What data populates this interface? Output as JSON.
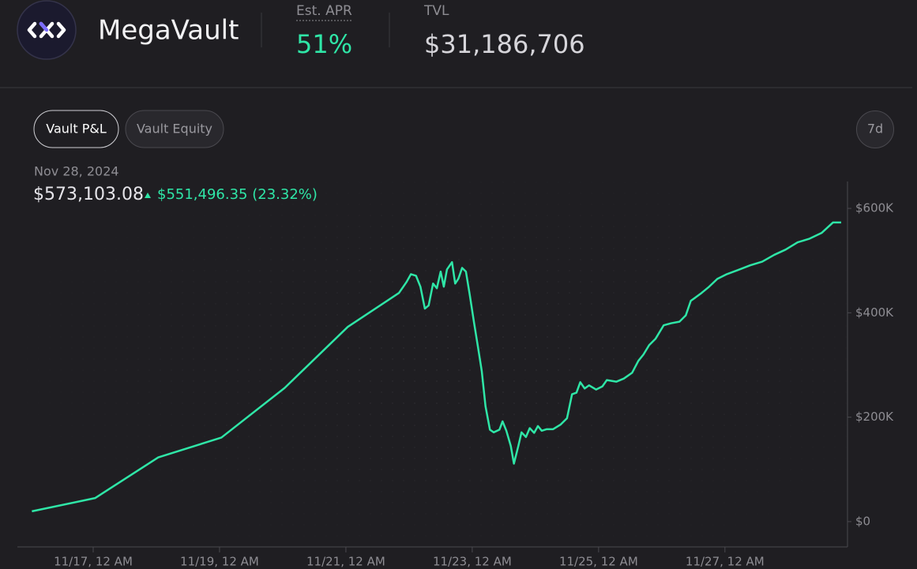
{
  "header": {
    "name": "MegaVault",
    "apr_label": "Est. APR",
    "apr_value": "51%",
    "tvl_label": "TVL",
    "tvl_value": "$31,186,706"
  },
  "tabs": [
    "Vault P&L",
    "Vault Equity"
  ],
  "range": "7d",
  "summary": {
    "date": "Nov 28, 2024",
    "value": "$573,103.08",
    "change": "$551,496.35 (23.32%)"
  },
  "chart_data": {
    "type": "line",
    "color": "#2fe6a7",
    "x": [
      16.03,
      17.03,
      18.03,
      19.03,
      20.03,
      21.03,
      21.84,
      21.96,
      22.03,
      22.11,
      22.18,
      22.25,
      22.31,
      22.38,
      22.44,
      22.5,
      22.55,
      22.6,
      22.68,
      22.73,
      22.78,
      22.84,
      22.9,
      22.96,
      23.03,
      23.09,
      23.15,
      23.21,
      23.28,
      23.34,
      23.43,
      23.48,
      23.54,
      23.61,
      23.66,
      23.73,
      23.78,
      23.85,
      23.91,
      23.98,
      24.04,
      24.1,
      24.18,
      24.28,
      24.4,
      24.5,
      24.58,
      24.65,
      24.71,
      24.78,
      24.85,
      24.96,
      25.06,
      25.13,
      25.28,
      25.4,
      25.53,
      25.63,
      25.71,
      25.8,
      25.9,
      26.03,
      26.15,
      26.28,
      26.38,
      26.46,
      26.53,
      26.63,
      26.75,
      26.88,
      27.03,
      27.21,
      27.4,
      27.59,
      27.78,
      27.96,
      28.15,
      28.34,
      28.53,
      28.71,
      28.84
    ],
    "values": [
      19700,
      45000,
      123000,
      161000,
      256000,
      373000,
      438000,
      459000,
      474000,
      471000,
      450000,
      408000,
      414000,
      456000,
      447000,
      479000,
      450000,
      483000,
      497000,
      456000,
      465000,
      486000,
      479000,
      435000,
      380000,
      335000,
      289000,
      221000,
      176000,
      171000,
      176000,
      192000,
      174000,
      145000,
      111000,
      145000,
      171000,
      162000,
      179000,
      170000,
      183000,
      174000,
      177000,
      177000,
      186000,
      198000,
      244000,
      247000,
      267000,
      255000,
      261000,
      253000,
      259000,
      271000,
      268000,
      274000,
      285000,
      308000,
      320000,
      338000,
      350000,
      376000,
      380000,
      383000,
      395000,
      423000,
      429000,
      438000,
      450000,
      465000,
      474000,
      482000,
      491000,
      498000,
      511000,
      521000,
      535000,
      542000,
      553000,
      573000,
      573000
    ],
    "xlim": [
      15.8,
      28.94
    ],
    "xticks": [
      {
        "value": 17,
        "label": "11/17, 12 AM"
      },
      {
        "value": 19,
        "label": "11/19, 12 AM"
      },
      {
        "value": 21,
        "label": "11/21, 12 AM"
      },
      {
        "value": 23,
        "label": "11/23, 12 AM"
      },
      {
        "value": 25,
        "label": "11/25, 12 AM"
      },
      {
        "value": 27,
        "label": "11/27, 12 AM"
      }
    ],
    "ylim": [
      -48500,
      651500
    ],
    "yticks": [
      {
        "value": 0,
        "label": "$0"
      },
      {
        "value": 200000,
        "label": "$200K"
      },
      {
        "value": 400000,
        "label": "$400K"
      },
      {
        "value": 600000,
        "label": "$600K"
      }
    ]
  }
}
